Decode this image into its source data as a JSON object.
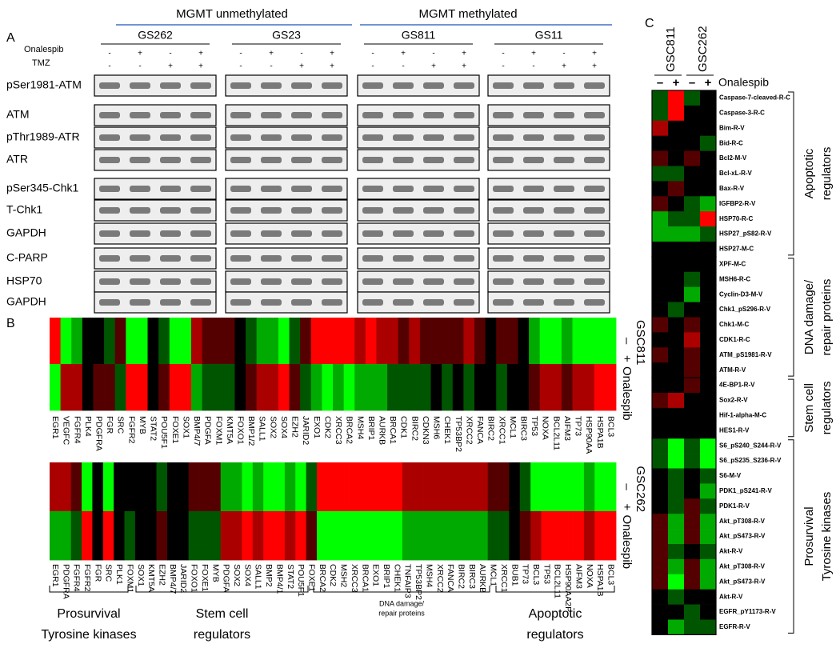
{
  "panel_a": {
    "label": "A",
    "groups": [
      "MGMT unmethylated",
      "MGMT methylated"
    ],
    "cell_lines": [
      "GS262",
      "GS23",
      "GS811",
      "GS11"
    ],
    "treatments": [
      {
        "name": "Onalespib",
        "signs": [
          "-",
          "+",
          "-",
          "+"
        ]
      },
      {
        "name": "TMZ",
        "signs": [
          "-",
          "-",
          "+",
          "+"
        ]
      }
    ],
    "blots": [
      "pSer1981-ATM",
      "ATM",
      "pThr1989-ATR",
      "ATR",
      "pSer345-Chk1",
      "T-Chk1",
      "GAPDH",
      "C-PARP",
      "HSP70",
      "GAPDH"
    ]
  },
  "panel_b": {
    "label": "B",
    "treatment": "Onalespib",
    "minus": "–",
    "plus": "+",
    "high_color": "#ff0000",
    "low_color": "#00ff00",
    "heatmaps": [
      {
        "name": "GSC811",
        "genes": [
          "EGR1",
          "VEGFC",
          "FGFR4",
          "PLK4",
          "PDGFRA",
          "FGR",
          "SRC",
          "FGFR2",
          "MYB",
          "STAT2",
          "POU5F1",
          "FOXE1",
          "SOX1",
          "BMP4/7",
          "PDGFA",
          "FOXM1",
          "KMT5A",
          "FOXO1",
          "BMP1/2",
          "SALL1",
          "SOX2",
          "SOX4",
          "EZH2",
          "JARID2",
          "EXO1",
          "CDK2",
          "XRCC3",
          "BRCA2",
          "MSH4",
          "BRIP1",
          "AURKB",
          "BRCA1",
          "CDK1",
          "BIRC2",
          "CDKN3",
          "MSH6",
          "CHEK1",
          "TP53BP2",
          "XRCC2",
          "FANCA",
          "BIRC2",
          "XRCC1",
          "MCL1",
          "BIRC3",
          "TP53",
          "NOXA",
          "BCL2L11",
          "AIFM3",
          "TP73",
          "HSP90AA",
          "HSPA1B",
          "BCL3"
        ],
        "gene_colors": [
          "#e00",
          "#000",
          "#000",
          "#000",
          "#000",
          "#292",
          "#292",
          "#292",
          "#000",
          "#000",
          "#292",
          "#000",
          "#000",
          "#e00",
          "#e00",
          "#e00",
          "#e00",
          "#e00",
          "#000",
          "#292",
          "#292",
          "#292",
          "#000",
          "#e00",
          "#e00",
          "#e00",
          "#e00",
          "#e00",
          "#e00",
          "#e00",
          "#e00",
          "#e00",
          "#e00",
          "#000",
          "#000",
          "#000",
          "#000",
          "#000",
          "#e00",
          "#000",
          "#000",
          "#000",
          "#000",
          "#000",
          "#000",
          "#000",
          "#000",
          "#000",
          "#000",
          "#e00",
          "#e00",
          "#000"
        ],
        "values": [
          [
            3,
            -3,
            -2,
            0,
            0,
            -1,
            1,
            -3,
            -3,
            0,
            -1,
            -3,
            -3,
            2,
            1,
            1,
            1,
            0,
            -1,
            -2,
            -2,
            -3,
            -1,
            1,
            3,
            3,
            3,
            3,
            2,
            3,
            2,
            2,
            1,
            2,
            1,
            1,
            1,
            1,
            2,
            1,
            0,
            1,
            1,
            0,
            -2,
            -3,
            -3,
            -2,
            -3,
            -3,
            -3,
            -3
          ],
          [
            -3,
            2,
            2,
            0,
            1,
            1,
            -1,
            3,
            3,
            0,
            1,
            3,
            3,
            -2,
            -1,
            -1,
            -1,
            0,
            1,
            2,
            2,
            3,
            1,
            -1,
            -2,
            -3,
            -2,
            -3,
            -2,
            -2,
            -2,
            -1,
            -1,
            -1,
            -1,
            0,
            -1,
            0,
            -1,
            0,
            0,
            -1,
            0,
            0,
            1,
            2,
            2,
            1,
            2,
            2,
            3,
            3
          ]
        ]
      },
      {
        "name": "GSC262",
        "genes": [
          "EGR1",
          "PDGFRA",
          "FGFR4",
          "FGFR2",
          "FGR",
          "SRC",
          "PLK1",
          "FOXM1",
          "SOX1",
          "KMT5A",
          "EZH2",
          "BMP4/7",
          "JARID2",
          "FOXO1",
          "FOXE1",
          "MYB",
          "PDGFA",
          "SOX2",
          "SOX4",
          "SALL1",
          "BMP2",
          "BMP4/1",
          "STAT2",
          "POU5F1",
          "FOXE1",
          "BRCA2",
          "CDK2",
          "MSH2",
          "XRCC3",
          "BRCA1",
          "EXO1",
          "BRIP1",
          "CHEK1",
          "TNFAIP3",
          "TP53BP2",
          "MSH4",
          "XRCC2",
          "FANCA",
          "BIRC2",
          "BIRC3",
          "AURKB",
          "MCL1",
          "XRCC1",
          "BUB1",
          "TP73",
          "BCL3",
          "TP53",
          "BCL2L11",
          "HSP90AA2P",
          "AIFM3",
          "NOXA",
          "HSPA1B",
          "BCL3"
        ],
        "gene_colors": [
          "#e00",
          "#000",
          "#000",
          "#292",
          "#292",
          "#292",
          "#000",
          "#e00",
          "#000",
          "#e00",
          "#000",
          "#e00",
          "#e00",
          "#e00",
          "#000",
          "#000",
          "#e00",
          "#292",
          "#292",
          "#292",
          "#000",
          "#000",
          "#292",
          "#292",
          "#000",
          "#e00",
          "#e00",
          "#000",
          "#e00",
          "#e00",
          "#e00",
          "#e00",
          "#000",
          "#000",
          "#000",
          "#e00",
          "#e00",
          "#000",
          "#000",
          "#000",
          "#e00",
          "#000",
          "#000",
          "#000",
          "#000",
          "#000",
          "#000",
          "#000",
          "#e00",
          "#000",
          "#000",
          "#e00",
          "#000"
        ],
        "values": [
          [
            2,
            2,
            1,
            -3,
            0,
            -3,
            0,
            0,
            0,
            0,
            -1,
            0,
            0,
            1,
            1,
            1,
            -2,
            -2,
            -3,
            -2,
            -3,
            -3,
            -2,
            -3,
            -1,
            3,
            3,
            3,
            3,
            3,
            3,
            3,
            3,
            2,
            2,
            2,
            2,
            2,
            2,
            2,
            2,
            1,
            1,
            0,
            -1,
            -3,
            -3,
            -3,
            -3,
            -3,
            -2,
            -3,
            -3
          ],
          [
            -2,
            -2,
            -1,
            3,
            0,
            3,
            0,
            -1,
            0,
            0,
            1,
            0,
            0,
            -1,
            -1,
            -1,
            2,
            2,
            3,
            2,
            3,
            3,
            2,
            3,
            1,
            -3,
            -3,
            -3,
            -3,
            -3,
            -3,
            -3,
            -3,
            -2,
            -2,
            -2,
            -2,
            -2,
            -2,
            -2,
            -2,
            -1,
            -1,
            0,
            1,
            2,
            3,
            3,
            3,
            3,
            2,
            3,
            3
          ]
        ]
      }
    ],
    "groups": [
      [
        "Prosurvival",
        "Tyrosine kinases"
      ],
      [
        "Stem cell",
        "regulators"
      ],
      [
        "DNA damage/",
        "repair proteins"
      ],
      [
        "Apoptotic",
        "regulators"
      ]
    ]
  },
  "panel_c": {
    "label": "C",
    "cell_lines": [
      "GSC811",
      "GSC262"
    ],
    "signs": [
      "–",
      "+"
    ],
    "treatment": "Onalespib",
    "groups": [
      {
        "label": [
          "Apoptotic",
          "regulators"
        ],
        "rows": [
          {
            "name": "Caspase-7-cleaved-R-C",
            "values": [
              -1,
              3,
              -1,
              0
            ]
          },
          {
            "name": "Caspase-3-R-C",
            "values": [
              -1,
              3,
              0,
              0
            ]
          },
          {
            "name": "Bim-R-V",
            "values": [
              2,
              0,
              0,
              0
            ]
          },
          {
            "name": "Bid-R-C",
            "values": [
              0,
              0,
              0,
              -1
            ]
          },
          {
            "name": "Bcl2-M-V",
            "values": [
              1,
              0,
              1,
              0
            ]
          },
          {
            "name": "Bcl-xL-R-V",
            "values": [
              -1,
              -1,
              0,
              0
            ]
          },
          {
            "name": "Bax-R-V",
            "values": [
              0,
              1,
              0,
              0
            ]
          },
          {
            "name": "IGFBP2-R-V",
            "values": [
              1,
              0,
              -1,
              -2
            ]
          },
          {
            "name": "HSP70-R-C",
            "values": [
              -2,
              -1,
              -1,
              3
            ]
          },
          {
            "name": "HSP27_pS82-R-V",
            "values": [
              -2,
              -2,
              -2,
              -1
            ]
          },
          {
            "name": "HSP27-M-C",
            "values": [
              0,
              0,
              0,
              0
            ]
          }
        ]
      },
      {
        "label": [
          "DNA damage/",
          "repair proteins"
        ],
        "rows": [
          {
            "name": "XPF-M-C",
            "values": [
              0,
              0,
              0,
              0
            ]
          },
          {
            "name": "MSH6-R-C",
            "values": [
              0,
              0,
              -1,
              0
            ]
          },
          {
            "name": "Cyclin-D3-M-V",
            "values": [
              0,
              0,
              -2,
              0
            ]
          },
          {
            "name": "Chk1_pS296-R-V",
            "values": [
              0,
              -1,
              0,
              0
            ]
          },
          {
            "name": "Chk1-M-C",
            "values": [
              1,
              0,
              1,
              0
            ]
          },
          {
            "name": "CDK1-R-C",
            "values": [
              0,
              0,
              2,
              0
            ]
          },
          {
            "name": "ATM_pS1981-R-V",
            "values": [
              1,
              0,
              1,
              0
            ]
          },
          {
            "name": "ATM-R-V",
            "values": [
              0,
              0,
              1,
              0
            ]
          }
        ]
      },
      {
        "label": [
          "Stem cell",
          "regulators"
        ],
        "rows": [
          {
            "name": "4E-BP1-R-V",
            "values": [
              0,
              0,
              1,
              0
            ]
          },
          {
            "name": "Sox2-R-V",
            "values": [
              1,
              2,
              0,
              0
            ]
          },
          {
            "name": "Hif-1-alpha-M-C",
            "values": [
              0,
              0,
              0,
              0
            ]
          },
          {
            "name": "HES1-R-V",
            "values": [
              0,
              0,
              0,
              0
            ]
          }
        ]
      },
      {
        "label": [
          "Prosurvival",
          "Tyrosine kinases"
        ],
        "rows": [
          {
            "name": "S6_pS240_S244-R-V",
            "values": [
              -1,
              -3,
              -1,
              -3
            ]
          },
          {
            "name": "S6_pS235_S236-R-V",
            "values": [
              -1,
              -3,
              -1,
              -3
            ]
          },
          {
            "name": "S6-M-V",
            "values": [
              0,
              -1,
              0,
              -1
            ]
          },
          {
            "name": "PDK1_pS241-R-V",
            "values": [
              0,
              -1,
              0,
              -2
            ]
          },
          {
            "name": "PDK1-R-V",
            "values": [
              0,
              -1,
              1,
              -1
            ]
          },
          {
            "name": "Akt_pT308-R-V",
            "values": [
              1,
              -2,
              1,
              -2
            ]
          },
          {
            "name": "Akt_pS473-R-V",
            "values": [
              1,
              -2,
              1,
              -2
            ]
          },
          {
            "name": "Akt-R-V",
            "values": [
              1,
              -1,
              0,
              -1
            ]
          },
          {
            "name": "Akt_pT308-R-V",
            "values": [
              1,
              -2,
              1,
              -2
            ]
          },
          {
            "name": "Akt_pS473-R-V",
            "values": [
              1,
              -3,
              1,
              -2
            ]
          },
          {
            "name": "Akt-R-V",
            "values": [
              0,
              -1,
              0,
              0
            ]
          },
          {
            "name": "EGFR_pY1173-R-V",
            "values": [
              0,
              0,
              -1,
              0
            ]
          },
          {
            "name": "EGFR-R-V",
            "values": [
              0,
              -2,
              -1,
              -1
            ]
          }
        ]
      }
    ]
  }
}
